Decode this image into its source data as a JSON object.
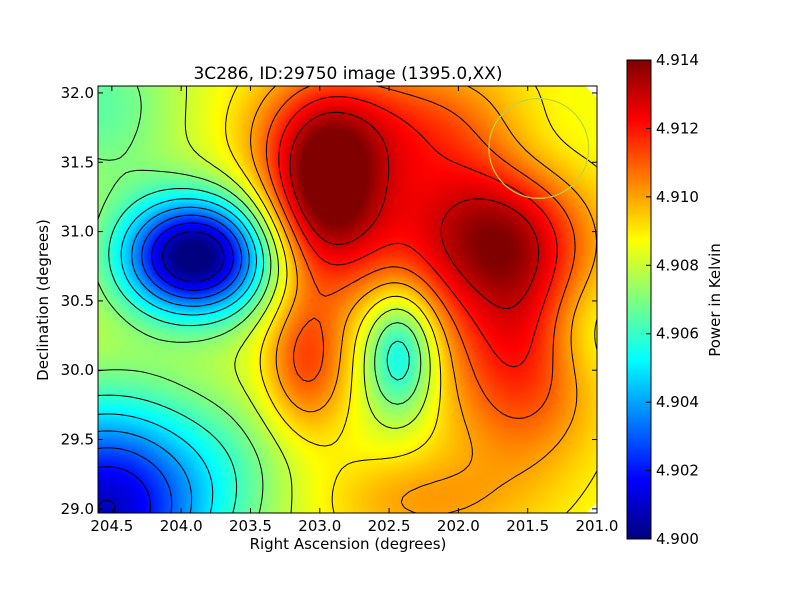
{
  "chart_data": {
    "type": "heatmap",
    "title": "3C286, ID:29750 image (1395.0,XX)",
    "xlabel": "Right Ascension (degrees)",
    "ylabel": "Declination (degrees)",
    "colorbar_label": "Power in Kelvin",
    "xlim": [
      204.6,
      201.0
    ],
    "ylim": [
      28.97,
      32.05
    ],
    "x_ticks": [
      {
        "value": 204.5,
        "label": "204.5"
      },
      {
        "value": 204.0,
        "label": "204.0"
      },
      {
        "value": 203.5,
        "label": "203.5"
      },
      {
        "value": 203.0,
        "label": "203.0"
      },
      {
        "value": 202.5,
        "label": "202.5"
      },
      {
        "value": 202.0,
        "label": "202.0"
      },
      {
        "value": 201.5,
        "label": "201.5"
      },
      {
        "value": 201.0,
        "label": "201.0"
      }
    ],
    "y_ticks": [
      {
        "value": 29.0,
        "label": "29.0"
      },
      {
        "value": 29.5,
        "label": "29.5"
      },
      {
        "value": 30.0,
        "label": "30.0"
      },
      {
        "value": 30.5,
        "label": "30.5"
      },
      {
        "value": 31.0,
        "label": "31.0"
      },
      {
        "value": 31.5,
        "label": "31.5"
      },
      {
        "value": 32.0,
        "label": "32.0"
      }
    ],
    "colorbar": {
      "min": 4.9,
      "max": 4.914,
      "colormap": "jet",
      "ticks": [
        {
          "value": 4.9,
          "label": "4.900"
        },
        {
          "value": 4.902,
          "label": "4.902"
        },
        {
          "value": 4.904,
          "label": "4.904"
        },
        {
          "value": 4.906,
          "label": "4.906"
        },
        {
          "value": 4.908,
          "label": "4.908"
        },
        {
          "value": 4.91,
          "label": "4.910"
        },
        {
          "value": 4.912,
          "label": "4.912"
        },
        {
          "value": 4.914,
          "label": "4.914"
        }
      ]
    },
    "background_level": 4.9085,
    "features": [
      {
        "ra": 203.9,
        "dec": 30.82,
        "amp": -0.009,
        "sx": 0.38,
        "sy": 0.3
      },
      {
        "ra": 204.55,
        "dec": 29.0,
        "amp": -0.0075,
        "sx": 0.55,
        "sy": 0.55
      },
      {
        "ra": 202.97,
        "dec": 31.3,
        "amp": 0.005,
        "sx": 0.3,
        "sy": 0.45
      },
      {
        "ra": 202.45,
        "dec": 31.75,
        "amp": 0.0028,
        "sx": 0.7,
        "sy": 0.35
      },
      {
        "ra": 202.1,
        "dec": 30.95,
        "amp": 0.0028,
        "sx": 0.6,
        "sy": 0.4
      },
      {
        "ra": 201.55,
        "dec": 30.15,
        "amp": 0.0035,
        "sx": 0.4,
        "sy": 0.6
      },
      {
        "ra": 201.65,
        "dec": 31.05,
        "amp": 0.002,
        "sx": 0.4,
        "sy": 0.4
      },
      {
        "ra": 203.1,
        "dec": 30.05,
        "amp": 0.0028,
        "sx": 0.22,
        "sy": 0.38
      },
      {
        "ra": 202.42,
        "dec": 30.12,
        "amp": -0.0035,
        "sx": 0.18,
        "sy": 0.32
      },
      {
        "ra": 201.45,
        "dec": 31.6,
        "amp": -0.001,
        "sx": 0.35,
        "sy": 0.3
      },
      {
        "ra": 201.1,
        "dec": 30.3,
        "amp": -0.0012,
        "sx": 0.25,
        "sy": 0.3
      },
      {
        "ra": 204.6,
        "dec": 31.9,
        "amp": -0.002,
        "sx": 0.45,
        "sy": 0.45
      },
      {
        "ra": 203.6,
        "dec": 29.3,
        "amp": -0.001,
        "sx": 0.4,
        "sy": 0.4
      },
      {
        "ra": 202.3,
        "dec": 29.05,
        "amp": 0.0015,
        "sx": 0.5,
        "sy": 0.25
      }
    ],
    "contour_levels": [
      4.901,
      4.902,
      4.903,
      4.904,
      4.905,
      4.906,
      4.907,
      4.908,
      4.909,
      4.91,
      4.911,
      4.912,
      4.913
    ],
    "markers": [
      {
        "type": "circle",
        "ra": 201.42,
        "dec": 31.6,
        "radius_deg": 0.36,
        "color": "#b8d83a"
      }
    ]
  }
}
